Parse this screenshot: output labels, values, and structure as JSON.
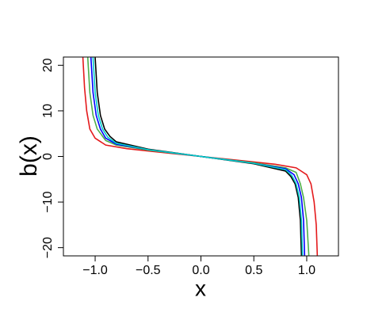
{
  "chart_data": {
    "type": "line",
    "xlabel": "x",
    "ylabel": "b(x)",
    "xlim": [
      -1.3,
      1.3
    ],
    "ylim": [
      -21.8,
      21.8
    ],
    "xticks": [
      {
        "value": -1,
        "label": "−1.0"
      },
      {
        "value": -0.5,
        "label": "−0.5"
      },
      {
        "value": 0,
        "label": "0.0"
      },
      {
        "value": 0.5,
        "label": "0.5"
      },
      {
        "value": 1,
        "label": "1.0"
      }
    ],
    "yticks": [
      {
        "value": -20,
        "label": "−20"
      },
      {
        "value": -10,
        "label": "−10"
      },
      0,
      10,
      20
    ],
    "series": [
      {
        "color": "#e41a1c",
        "x": [
          -1.116,
          -1.1,
          -1.08,
          -1.05,
          -1.0,
          -0.9,
          -0.7,
          -0.5,
          -0.25,
          0,
          0.25,
          0.5,
          0.7,
          0.9,
          1.0,
          1.04,
          1.07,
          1.09,
          1.1
        ],
        "values": [
          21.7,
          15,
          10,
          6,
          4,
          2.5,
          1.7,
          1.2,
          0.6,
          0,
          -0.6,
          -1.2,
          -1.7,
          -2.5,
          -4,
          -6,
          -10,
          -15,
          -21.7
        ]
      },
      {
        "color": "#4daf4a",
        "x": [
          -1.07,
          -1.05,
          -1.02,
          -0.98,
          -0.9,
          -0.8,
          -0.5,
          -0.25,
          0,
          0.25,
          0.5,
          0.8,
          0.9,
          0.94,
          0.97,
          1.0,
          1.02
        ],
        "values": [
          21.7,
          14,
          9,
          6,
          3.5,
          2.5,
          1.4,
          0.7,
          0,
          -0.7,
          -1.4,
          -2.5,
          -3.5,
          -6,
          -9,
          -14,
          -21.7
        ]
      },
      {
        "color": "#0000ff",
        "x": [
          -1.04,
          -1.02,
          -0.99,
          -0.95,
          -0.9,
          -0.8,
          -0.5,
          -0.25,
          0,
          0.25,
          0.5,
          0.8,
          0.88,
          0.92,
          0.95,
          0.97,
          0.98
        ],
        "values": [
          21.7,
          14,
          9,
          6,
          4,
          2.7,
          1.5,
          0.75,
          0,
          -0.75,
          -1.5,
          -2.7,
          -4,
          -6,
          -9,
          -14,
          -21.7
        ]
      },
      {
        "color": "#000000",
        "x": [
          -1.0,
          -0.98,
          -0.95,
          -0.91,
          -0.86,
          -0.8,
          -0.5,
          -0.25,
          0,
          0.25,
          0.5,
          0.8,
          0.85,
          0.89,
          0.92,
          0.94,
          0.95
        ],
        "values": [
          21.7,
          14,
          9,
          6,
          4.4,
          3.2,
          1.6,
          0.8,
          0,
          -0.8,
          -1.6,
          -3.2,
          -4.4,
          -6,
          -9,
          -14,
          -21.7
        ]
      },
      {
        "color": "#00cccc",
        "x": [
          -1.02,
          -1.0,
          -0.97,
          -0.93,
          -0.88,
          -0.8,
          -0.5,
          -0.25,
          0,
          0.25,
          0.5,
          0.8,
          0.86,
          0.9,
          0.93,
          0.95,
          0.96
        ],
        "values": [
          21.7,
          14,
          9,
          6,
          4.2,
          2.9,
          1.5,
          0.75,
          0,
          -0.75,
          -1.5,
          -2.9,
          -4.2,
          -6,
          -9,
          -14,
          -21.7
        ]
      }
    ]
  }
}
